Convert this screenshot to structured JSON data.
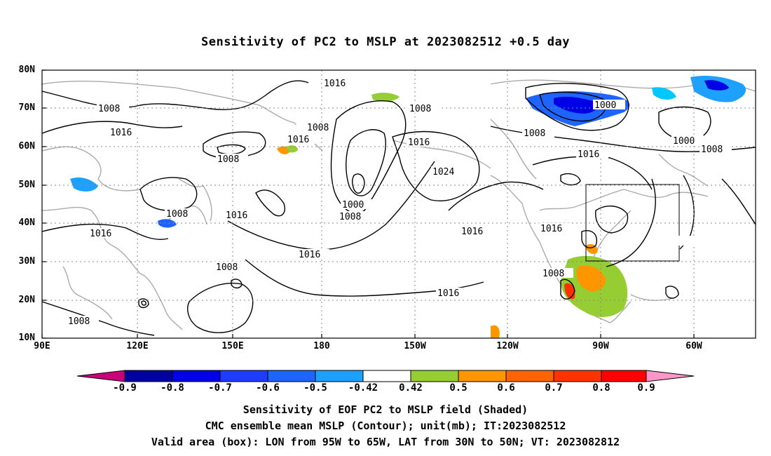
{
  "title": "Sensitivity of PC2 to MSLP at 2023082512 +0.5 day",
  "lat_labels": [
    "80N",
    "70N",
    "60N",
    "50N",
    "40N",
    "30N",
    "20N",
    "10N"
  ],
  "lon_labels": [
    "90E",
    "120E",
    "150E",
    "180",
    "150W",
    "120W",
    "90W",
    "60W"
  ],
  "contour_labels": [
    "1016",
    "1008",
    "1016",
    "1008",
    "1008",
    "1016",
    "1008",
    "1008",
    "1008",
    "1016",
    "1016",
    "1016",
    "1000",
    "1008",
    "1016",
    "1008",
    "1024",
    "1016",
    "1016",
    "1008",
    "1000",
    "1008",
    "1016",
    "1000",
    "1008",
    "1016"
  ],
  "colorbar": {
    "labels": [
      "-0.9",
      "-0.8",
      "-0.7",
      "-0.6",
      "-0.5",
      "-0.42",
      "0.42",
      "0.5",
      "0.6",
      "0.7",
      "0.8",
      "0.9"
    ],
    "colors": [
      "#c8007a",
      "#0000a0",
      "#0000e6",
      "#1e3cff",
      "#1e64ff",
      "#1ea0ff",
      "#00c8ff",
      "#ffffff",
      "#96cd32",
      "#ff9600",
      "#ff6400",
      "#ff3200",
      "#ff0000",
      "#ff96c8"
    ]
  },
  "captions": [
    "Sensitivity of EOF PC2 to MSLP field (Shaded)",
    "CMC ensemble mean MSLP (Contour); unit(mb); IT:2023082512",
    "Valid area (box): LON from 95W to 65W, LAT from 30N to 50N; VT: 2023082812"
  ],
  "colors": {
    "coast": "#aaaaaa",
    "contour": "#000000",
    "grid": "#888888",
    "positive": "#96cd32",
    "negative": "#1e64ff"
  }
}
